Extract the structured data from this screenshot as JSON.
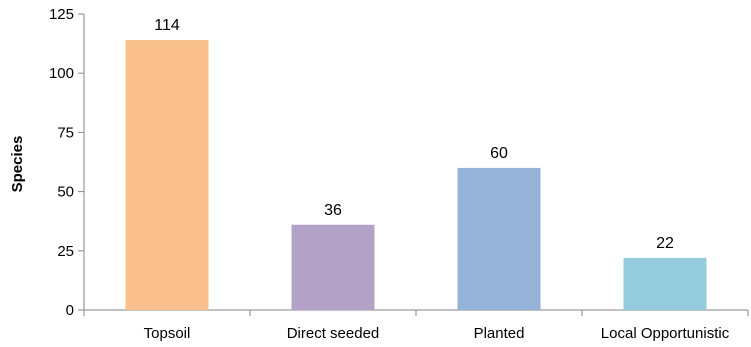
{
  "chart_data": {
    "type": "bar",
    "title": "",
    "xlabel": "",
    "ylabel": "Species",
    "ylim": [
      0,
      125
    ],
    "yticks": [
      0,
      25,
      50,
      75,
      100,
      125
    ],
    "grid": false,
    "categories": [
      "Topsoil",
      "Direct seeded",
      "Planted",
      "Local Opportunistic"
    ],
    "values": [
      114,
      36,
      60,
      22
    ],
    "colors": [
      "#F9C08E",
      "#B3A2C7",
      "#95B3D7",
      "#93CDDD"
    ]
  }
}
